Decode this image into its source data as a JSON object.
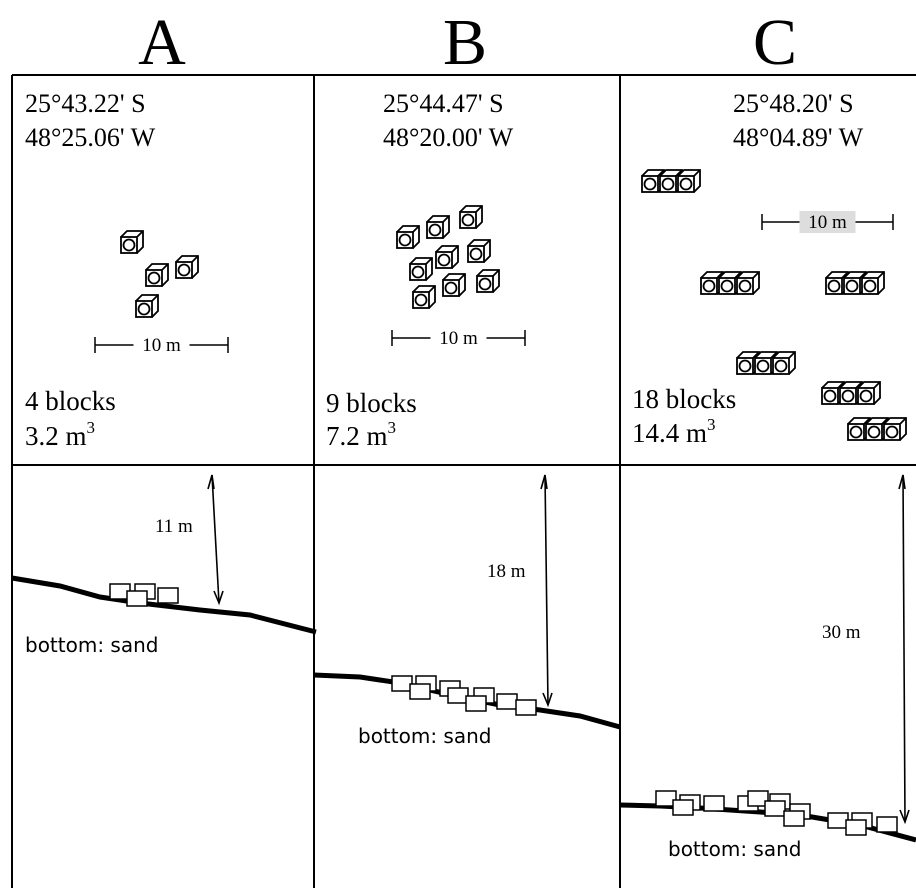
{
  "columns": [
    {
      "label": "A",
      "latitude": "25°43.22' S",
      "longitude": "48°25.06' W",
      "scale": "10 m",
      "blocks": "4 blocks",
      "volume": "3.2 m",
      "volume_exponent": "3",
      "depth": "11 m",
      "bottom": "bottom: sand"
    },
    {
      "label": "B",
      "latitude": "25°44.47' S",
      "longitude": "48°20.00' W",
      "scale": "10 m",
      "blocks": "9 blocks",
      "volume": "7.2 m",
      "volume_exponent": "3",
      "depth": "18 m",
      "bottom": "bottom: sand"
    },
    {
      "label": "C",
      "latitude": "25°48.20' S",
      "longitude": "48°04.89' W",
      "scale": "10 m",
      "blocks": "18 blocks",
      "volume": "14.4 m",
      "volume_exponent": "3",
      "depth": "30 m",
      "bottom": "bottom: sand"
    }
  ]
}
